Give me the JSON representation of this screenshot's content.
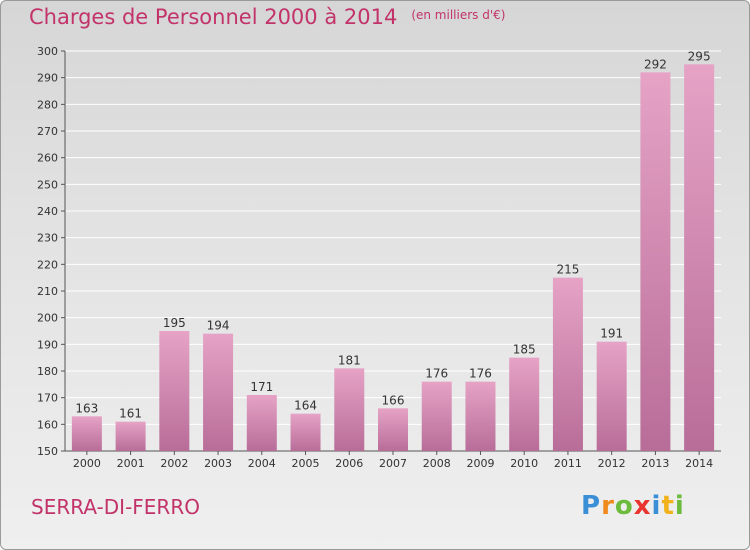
{
  "title": "Charges de Personnel 2000 à 2014",
  "unit": "(en milliers d'€)",
  "city": "SERRA-DI-FERRO",
  "logo": [
    "P",
    "r",
    "o",
    "x",
    "i",
    "t",
    "i"
  ],
  "colors": {
    "title": "#c2336a",
    "bar_top": "#e6a3c6",
    "bar_bottom": "#b86d98",
    "logo": [
      "#3a8fd6",
      "#f08a1c",
      "#6cbb3c",
      "#e8352f",
      "#3a8fd6",
      "#f2b21b",
      "#6cbb3c"
    ]
  },
  "chart_data": {
    "type": "bar",
    "categories": [
      "2000",
      "2001",
      "2002",
      "2003",
      "2004",
      "2005",
      "2006",
      "2007",
      "2008",
      "2009",
      "2010",
      "2011",
      "2012",
      "2013",
      "2014"
    ],
    "values": [
      163,
      161,
      195,
      194,
      171,
      164,
      181,
      166,
      176,
      176,
      185,
      215,
      191,
      292,
      295
    ],
    "ylim": [
      150,
      300
    ],
    "yticks": [
      150,
      160,
      170,
      180,
      190,
      200,
      210,
      220,
      230,
      240,
      250,
      260,
      270,
      280,
      290,
      300
    ],
    "grid": true,
    "title": "Charges de Personnel 2000 à 2014",
    "xlabel": "",
    "ylabel": ""
  }
}
